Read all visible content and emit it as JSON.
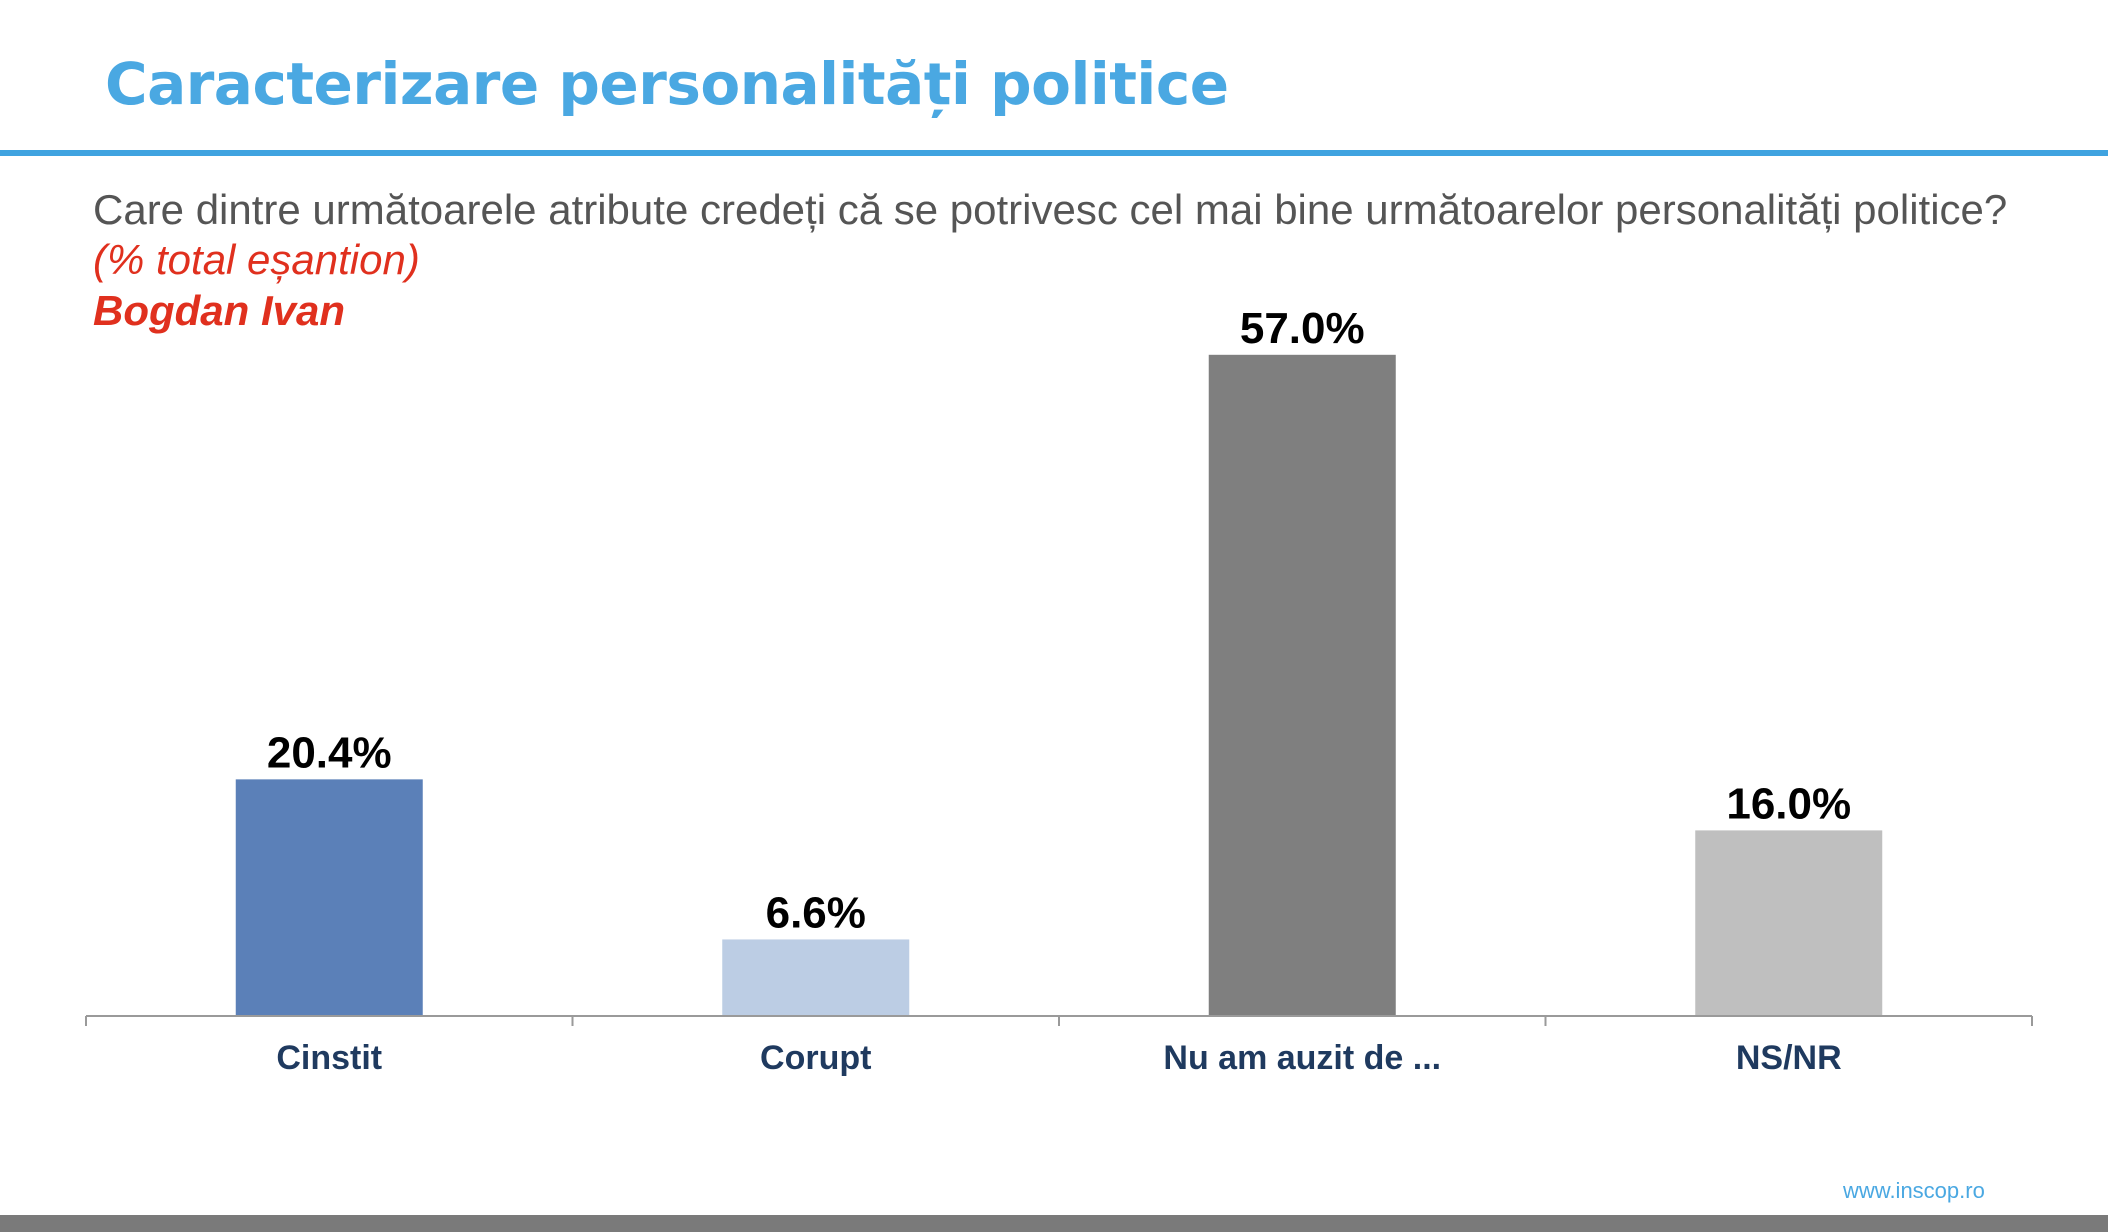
{
  "header": {
    "title": "Caracterizare personalități politice"
  },
  "subtitle": {
    "question": "Care dintre următoarele atribute credeți că se potrivesc cel mai bine următoarelor personalități politice?",
    "sample": "(% total eșantion)",
    "person": "Bogdan Ivan"
  },
  "chart_data": {
    "type": "bar",
    "categories": [
      "Cinstit",
      "Corupt",
      "Nu am auzit de ...",
      "NS/NR"
    ],
    "values": [
      20.4,
      6.6,
      57.0,
      16.0
    ],
    "value_labels": [
      "20.4%",
      "6.6%",
      "57.0%",
      "16.0%"
    ],
    "colors": [
      "#5b80b8",
      "#bccde4",
      "#7f7f7f",
      "#bfbfbf"
    ],
    "ylim": [
      0,
      60
    ],
    "grid": false,
    "legend": "none",
    "xlabel": "",
    "ylabel": ""
  },
  "footer": {
    "url": "www.inscop.ro"
  }
}
